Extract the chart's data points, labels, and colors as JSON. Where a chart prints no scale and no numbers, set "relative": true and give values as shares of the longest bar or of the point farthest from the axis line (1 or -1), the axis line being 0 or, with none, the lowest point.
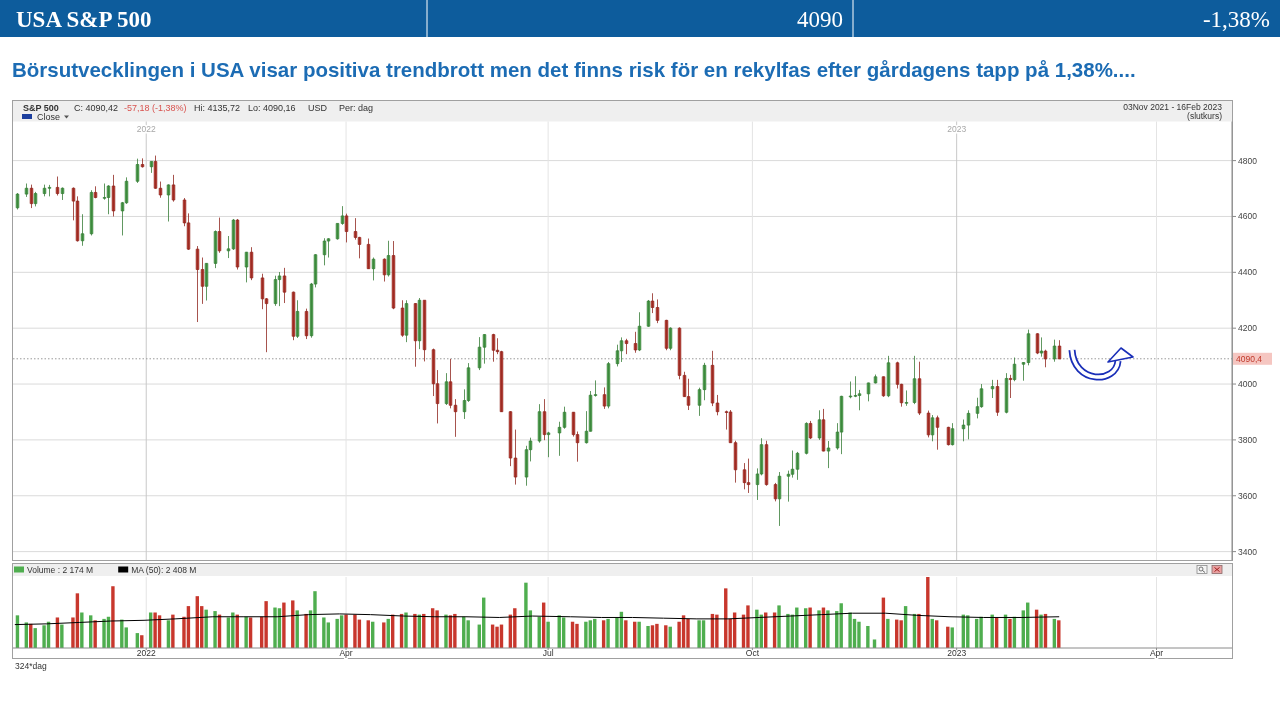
{
  "chart_data": [
    {
      "type": "candlestick",
      "title": "USA S&P 500",
      "subtitle": "Börsutvecklingen i USA visar positiva trendbrott men det finns risk för en rekylfas efter gårdagens tapp på 1,38%....",
      "annotations": [
        "4090",
        "-1,38%",
        "S&P 500",
        "C: 4090,42",
        "-57,18 (-1,38%)",
        "Hi: 4135,72",
        "Lo: 4090,16",
        "USD",
        "Per: dag",
        "Close",
        "03Nov 2021 - 16Feb 2023",
        "(slutkurs)"
      ],
      "x": [
        "2021-11-04",
        "2021-11-08",
        "2021-11-10",
        "2021-11-12",
        "2021-11-16",
        "2021-11-18",
        "2021-11-22",
        "2021-11-24",
        "2021-11-29",
        "2021-12-01",
        "2021-12-03",
        "2021-12-07",
        "2021-12-09",
        "2021-12-13",
        "2021-12-15",
        "2021-12-17",
        "2021-12-21",
        "2021-12-23",
        "2021-12-28",
        "2021-12-30",
        "2022-01-03",
        "2022-01-05",
        "2022-01-07",
        "2022-01-11",
        "2022-01-13",
        "2022-01-18",
        "2022-01-20",
        "2022-01-24",
        "2022-01-26",
        "2022-01-28",
        "2022-02-01",
        "2022-02-03",
        "2022-02-07",
        "2022-02-09",
        "2022-02-11",
        "2022-02-15",
        "2022-02-17",
        "2022-02-22",
        "2022-02-24",
        "2022-02-28",
        "2022-03-02",
        "2022-03-04",
        "2022-03-08",
        "2022-03-10",
        "2022-03-14",
        "2022-03-16",
        "2022-03-18",
        "2022-03-22",
        "2022-03-24",
        "2022-03-28",
        "2022-03-30",
        "2022-04-01",
        "2022-04-05",
        "2022-04-07",
        "2022-04-11",
        "2022-04-13",
        "2022-04-18",
        "2022-04-20",
        "2022-04-22",
        "2022-04-26",
        "2022-04-28",
        "2022-05-02",
        "2022-05-04",
        "2022-05-06",
        "2022-05-10",
        "2022-05-12",
        "2022-05-16",
        "2022-05-18",
        "2022-05-20",
        "2022-05-24",
        "2022-05-26",
        "2022-05-31",
        "2022-06-02",
        "2022-06-06",
        "2022-06-08",
        "2022-06-10",
        "2022-06-14",
        "2022-06-16",
        "2022-06-21",
        "2022-06-23",
        "2022-06-27",
        "2022-06-29",
        "2022-07-01",
        "2022-07-06",
        "2022-07-08",
        "2022-07-12",
        "2022-07-14",
        "2022-07-18",
        "2022-07-20",
        "2022-07-22",
        "2022-07-26",
        "2022-07-28",
        "2022-08-01",
        "2022-08-03",
        "2022-08-05",
        "2022-08-09",
        "2022-08-11",
        "2022-08-15",
        "2022-08-17",
        "2022-08-19",
        "2022-08-23",
        "2022-08-25",
        "2022-08-29",
        "2022-08-31",
        "2022-09-02",
        "2022-09-07",
        "2022-09-09",
        "2022-09-13",
        "2022-09-15",
        "2022-09-19",
        "2022-09-21",
        "2022-09-23",
        "2022-09-27",
        "2022-09-29",
        "2022-10-03",
        "2022-10-05",
        "2022-10-07",
        "2022-10-11",
        "2022-10-13",
        "2022-10-17",
        "2022-10-19",
        "2022-10-21",
        "2022-10-25",
        "2022-10-27",
        "2022-10-31",
        "2022-11-02",
        "2022-11-04",
        "2022-11-08",
        "2022-11-10",
        "2022-11-14",
        "2022-11-16",
        "2022-11-18",
        "2022-11-22",
        "2022-11-25",
        "2022-11-29",
        "2022-12-01",
        "2022-12-05",
        "2022-12-07",
        "2022-12-09",
        "2022-12-13",
        "2022-12-15",
        "2022-12-19",
        "2022-12-21",
        "2022-12-23",
        "2022-12-28",
        "2022-12-30",
        "2023-01-04",
        "2023-01-06",
        "2023-01-10",
        "2023-01-12",
        "2023-01-17",
        "2023-01-19",
        "2023-01-23",
        "2023-01-25",
        "2023-01-27",
        "2023-01-31",
        "2023-02-02",
        "2023-02-06",
        "2023-02-08",
        "2023-02-10",
        "2023-02-14",
        "2023-02-16"
      ],
      "ohlc": [
        [
          4631,
          4684,
          4625,
          4680
        ],
        [
          4680,
          4718,
          4670,
          4701
        ],
        [
          4701,
          4714,
          4630,
          4646
        ],
        [
          4646,
          4688,
          4636,
          4682
        ],
        [
          4682,
          4714,
          4672,
          4701
        ],
        [
          4701,
          4713,
          4672,
          4704
        ],
        [
          4704,
          4743,
          4675,
          4682
        ],
        [
          4682,
          4704,
          4659,
          4701
        ],
        [
          4701,
          4704,
          4586,
          4655
        ],
        [
          4655,
          4672,
          4510,
          4513
        ],
        [
          4513,
          4608,
          4495,
          4538
        ],
        [
          4538,
          4694,
          4532,
          4686
        ],
        [
          4686,
          4708,
          4665,
          4668
        ],
        [
          4668,
          4718,
          4660,
          4668
        ],
        [
          4668,
          4712,
          4608,
          4709
        ],
        [
          4709,
          4749,
          4600,
          4620
        ],
        [
          4620,
          4652,
          4532,
          4649
        ],
        [
          4649,
          4740,
          4645,
          4726
        ],
        [
          4726,
          4807,
          4720,
          4786
        ],
        [
          4786,
          4808,
          4775,
          4778
        ],
        [
          4778,
          4797,
          4756,
          4797
        ],
        [
          4797,
          4818,
          4699,
          4701
        ],
        [
          4701,
          4725,
          4667,
          4677
        ],
        [
          4677,
          4715,
          4582,
          4713
        ],
        [
          4713,
          4749,
          4653,
          4659
        ],
        [
          4659,
          4666,
          4565,
          4577
        ],
        [
          4577,
          4611,
          4480,
          4483
        ],
        [
          4483,
          4494,
          4222,
          4410
        ],
        [
          4410,
          4453,
          4287,
          4350
        ],
        [
          4350,
          4433,
          4299,
          4432
        ],
        [
          4432,
          4550,
          4415,
          4546
        ],
        [
          4546,
          4596,
          4470,
          4477
        ],
        [
          4477,
          4530,
          4451,
          4484
        ],
        [
          4484,
          4591,
          4480,
          4587
        ],
        [
          4587,
          4591,
          4410,
          4419
        ],
        [
          4419,
          4473,
          4364,
          4472
        ],
        [
          4472,
          4490,
          4372,
          4380
        ],
        [
          4380,
          4395,
          4268,
          4305
        ],
        [
          4305,
          4308,
          4114,
          4288
        ],
        [
          4288,
          4388,
          4280,
          4374
        ],
        [
          4374,
          4401,
          4279,
          4387
        ],
        [
          4387,
          4416,
          4290,
          4329
        ],
        [
          4329,
          4331,
          4157,
          4171
        ],
        [
          4171,
          4300,
          4165,
          4260
        ],
        [
          4260,
          4270,
          4161,
          4173
        ],
        [
          4173,
          4362,
          4166,
          4358
        ],
        [
          4358,
          4465,
          4346,
          4463
        ],
        [
          4463,
          4522,
          4425,
          4512
        ],
        [
          4512,
          4522,
          4453,
          4520
        ],
        [
          4520,
          4575,
          4517,
          4575
        ],
        [
          4575,
          4637,
          4570,
          4602
        ],
        [
          4602,
          4610,
          4507,
          4546
        ],
        [
          4546,
          4594,
          4517,
          4525
        ],
        [
          4525,
          4527,
          4450,
          4500
        ],
        [
          4500,
          4521,
          4412,
          4413
        ],
        [
          4413,
          4453,
          4371,
          4447
        ],
        [
          4447,
          4450,
          4367,
          4391
        ],
        [
          4391,
          4513,
          4385,
          4460
        ],
        [
          4460,
          4512,
          4268,
          4272
        ],
        [
          4272,
          4300,
          4169,
          4175
        ],
        [
          4175,
          4300,
          4150,
          4288
        ],
        [
          4288,
          4290,
          4062,
          4155
        ],
        [
          4155,
          4308,
          4125,
          4300
        ],
        [
          4300,
          4300,
          4081,
          4123
        ],
        [
          4123,
          4127,
          3957,
          4001
        ],
        [
          4001,
          4050,
          3859,
          3930
        ],
        [
          3930,
          4039,
          3925,
          4008
        ],
        [
          4008,
          4090,
          3913,
          3924
        ],
        [
          3924,
          3946,
          3811,
          3901
        ],
        [
          3901,
          3981,
          3875,
          3941
        ],
        [
          3941,
          4075,
          3936,
          4058
        ],
        [
          4058,
          4168,
          4050,
          4132
        ],
        [
          4132,
          4178,
          4073,
          4177
        ],
        [
          4177,
          4180,
          4080,
          4121
        ],
        [
          4121,
          4164,
          4107,
          4116
        ],
        [
          4116,
          4119,
          3900,
          3901
        ],
        [
          3901,
          3903,
          3706,
          3735
        ],
        [
          3735,
          3837,
          3640,
          3667
        ],
        [
          3667,
          3779,
          3636,
          3765
        ],
        [
          3765,
          3808,
          3723,
          3796
        ],
        [
          3796,
          3928,
          3790,
          3901
        ],
        [
          3901,
          3946,
          3799,
          3819
        ],
        [
          3819,
          3829,
          3738,
          3825
        ],
        [
          3825,
          3865,
          3743,
          3845
        ],
        [
          3845,
          3919,
          3840,
          3899
        ],
        [
          3899,
          3900,
          3812,
          3819
        ],
        [
          3819,
          3830,
          3722,
          3790
        ],
        [
          3790,
          3903,
          3787,
          3831
        ],
        [
          3831,
          3975,
          3830,
          3960
        ],
        [
          3960,
          4013,
          3955,
          3962
        ],
        [
          3962,
          3988,
          3911,
          3921
        ],
        [
          3921,
          4079,
          3913,
          4073
        ],
        [
          4073,
          4141,
          4063,
          4119
        ],
        [
          4119,
          4167,
          4079,
          4155
        ],
        [
          4155,
          4162,
          4107,
          4145
        ],
        [
          4145,
          4187,
          4112,
          4122
        ],
        [
          4122,
          4257,
          4118,
          4207
        ],
        [
          4207,
          4301,
          4205,
          4297
        ],
        [
          4297,
          4325,
          4254,
          4274
        ],
        [
          4274,
          4303,
          4218,
          4228
        ],
        [
          4228,
          4230,
          4121,
          4128
        ],
        [
          4128,
          4203,
          4121,
          4200
        ],
        [
          4200,
          4203,
          4017,
          4031
        ],
        [
          4031,
          4044,
          3954,
          3955
        ],
        [
          3955,
          4019,
          3907,
          3924
        ],
        [
          3924,
          3987,
          3886,
          3980
        ],
        [
          3980,
          4076,
          3942,
          4067
        ],
        [
          4067,
          4119,
          3921,
          3932
        ],
        [
          3932,
          3961,
          3888,
          3901
        ],
        [
          3901,
          3905,
          3837,
          3900
        ],
        [
          3900,
          3907,
          3789,
          3790
        ],
        [
          3790,
          3797,
          3647,
          3693
        ],
        [
          3693,
          3717,
          3623,
          3647
        ],
        [
          3647,
          3733,
          3610,
          3640
        ],
        [
          3640,
          3698,
          3585,
          3678
        ],
        [
          3678,
          3806,
          3673,
          3783
        ],
        [
          3783,
          3797,
          3636,
          3640
        ],
        [
          3640,
          3646,
          3580,
          3589
        ],
        [
          3589,
          3685,
          3492,
          3670
        ],
        [
          3670,
          3690,
          3579,
          3677
        ],
        [
          3677,
          3762,
          3665,
          3695
        ],
        [
          3695,
          3757,
          3657,
          3752
        ],
        [
          3752,
          3863,
          3748,
          3859
        ],
        [
          3859,
          3868,
          3803,
          3807
        ],
        [
          3807,
          3906,
          3800,
          3872
        ],
        [
          3872,
          3911,
          3759,
          3760
        ],
        [
          3760,
          3796,
          3699,
          3771
        ],
        [
          3771,
          3860,
          3765,
          3828
        ],
        [
          3828,
          3958,
          3749,
          3956
        ],
        [
          3956,
          4009,
          3949,
          3957
        ],
        [
          3957,
          4028,
          3953,
          3959
        ],
        [
          3959,
          3979,
          3906,
          3965
        ],
        [
          3965,
          4005,
          3938,
          4004
        ],
        [
          4004,
          4034,
          4002,
          4026
        ],
        [
          4026,
          4027,
          3954,
          3958
        ],
        [
          3958,
          4101,
          3953,
          4076
        ],
        [
          4076,
          4080,
          3984,
          3999
        ],
        [
          3999,
          4001,
          3919,
          3933
        ],
        [
          3933,
          3977,
          3922,
          3934
        ],
        [
          3934,
          4101,
          3928,
          4019
        ],
        [
          4019,
          4080,
          3889,
          3896
        ],
        [
          3896,
          3905,
          3809,
          3818
        ],
        [
          3818,
          3889,
          3795,
          3879
        ],
        [
          3879,
          3887,
          3765,
          3845
        ],
        [
          3845,
          3847,
          3780,
          3783
        ],
        [
          3783,
          3860,
          3780,
          3840
        ],
        [
          3840,
          3873,
          3795,
          3853
        ],
        [
          3853,
          3906,
          3802,
          3895
        ],
        [
          3895,
          3951,
          3877,
          3919
        ],
        [
          3919,
          4000,
          3915,
          3983
        ],
        [
          3983,
          4015,
          3950,
          3991
        ],
        [
          3991,
          4015,
          3886,
          3899
        ],
        [
          3899,
          4039,
          3895,
          4020
        ],
        [
          4020,
          4033,
          3950,
          4016
        ],
        [
          4016,
          4095,
          4010,
          4071
        ],
        [
          4071,
          4078,
          4012,
          4077
        ],
        [
          4077,
          4195,
          4067,
          4180
        ],
        [
          4180,
          4182,
          4107,
          4111
        ],
        [
          4111,
          4167,
          4098,
          4118
        ],
        [
          4118,
          4123,
          4060,
          4090
        ],
        [
          4090,
          4159,
          4080,
          4136
        ],
        [
          4136,
          4157,
          4090,
          4090
        ]
      ],
      "colors": [
        "#4fae4f",
        "#4fae4f",
        "#c8372d",
        "#4fae4f",
        "#4fae4f",
        "#4fae4f",
        "#c8372d",
        "#4fae4f",
        "#c8372d",
        "#c8372d",
        "#4fae4f",
        "#4fae4f",
        "#c8372d",
        "#4fae4f",
        "#4fae4f",
        "#c8372d",
        "#4fae4f",
        "#4fae4f",
        "#4fae4f",
        "#c8372d",
        "#4fae4f",
        "#c8372d",
        "#c8372d",
        "#4fae4f",
        "#c8372d",
        "#c8372d",
        "#c8372d",
        "#c8372d",
        "#c8372d",
        "#4fae4f",
        "#4fae4f",
        "#c8372d",
        "#4fae4f",
        "#4fae4f",
        "#c8372d",
        "#4fae4f",
        "#c8372d",
        "#c8372d",
        "#c8372d",
        "#4fae4f",
        "#4fae4f",
        "#c8372d",
        "#c8372d",
        "#4fae4f",
        "#c8372d",
        "#4fae4f",
        "#4fae4f",
        "#4fae4f",
        "#4fae4f",
        "#4fae4f",
        "#4fae4f",
        "#c8372d",
        "#c8372d",
        "#c8372d",
        "#c8372d",
        "#4fae4f",
        "#c8372d",
        "#4fae4f",
        "#c8372d",
        "#c8372d",
        "#4fae4f",
        "#c8372d",
        "#4fae4f",
        "#c8372d",
        "#c8372d",
        "#c8372d",
        "#4fae4f",
        "#c8372d",
        "#c8372d",
        "#4fae4f",
        "#4fae4f",
        "#4fae4f",
        "#4fae4f",
        "#c8372d",
        "#c8372d",
        "#c8372d",
        "#c8372d",
        "#c8372d",
        "#4fae4f",
        "#4fae4f",
        "#4fae4f",
        "#c8372d",
        "#4fae4f",
        "#4fae4f",
        "#4fae4f",
        "#c8372d",
        "#c8372d",
        "#4fae4f",
        "#4fae4f",
        "#4fae4f",
        "#c8372d",
        "#4fae4f",
        "#4fae4f",
        "#4fae4f",
        "#c8372d",
        "#c8372d",
        "#4fae4f",
        "#4fae4f",
        "#c8372d",
        "#c8372d",
        "#c8372d",
        "#4fae4f",
        "#c8372d",
        "#c8372d",
        "#c8372d",
        "#4fae4f",
        "#4fae4f",
        "#c8372d",
        "#c8372d",
        "#c8372d",
        "#c8372d",
        "#c8372d",
        "#c8372d",
        "#c8372d",
        "#4fae4f",
        "#4fae4f",
        "#c8372d",
        "#c8372d",
        "#4fae4f",
        "#4fae4f",
        "#4fae4f",
        "#4fae4f",
        "#4fae4f",
        "#c8372d",
        "#4fae4f",
        "#c8372d",
        "#4fae4f",
        "#4fae4f",
        "#4fae4f",
        "#4fae4f",
        "#4fae4f",
        "#4fae4f",
        "#4fae4f",
        "#4fae4f",
        "#c8372d",
        "#4fae4f",
        "#c8372d",
        "#c8372d",
        "#4fae4f",
        "#4fae4f",
        "#c8372d",
        "#c8372d",
        "#4fae4f",
        "#c8372d",
        "#c8372d",
        "#4fae4f",
        "#4fae4f",
        "#4fae4f",
        "#4fae4f",
        "#4fae4f",
        "#4fae4f",
        "#c8372d",
        "#4fae4f",
        "#c8372d",
        "#4fae4f",
        "#4fae4f",
        "#4fae4f",
        "#c8372d",
        "#4fae4f",
        "#c8372d",
        "#4fae4f",
        "#c8372d"
      ],
      "xlim": [
        "2021-11-02",
        "2023-05-05"
      ],
      "xticks": [
        {
          "value": "2022-01-01",
          "label": "2022"
        },
        {
          "value": "2022-04-01",
          "label": null
        },
        {
          "value": "2022-07-01",
          "label": null
        },
        {
          "value": "2022-10-01",
          "label": null
        },
        {
          "value": "2023-01-01",
          "label": "2023"
        },
        {
          "value": "2023-04-01",
          "label": null
        }
      ],
      "ylim": [
        3370,
        4940
      ],
      "yticks": [
        3400,
        3600,
        3800,
        4000,
        4200,
        4400,
        4600,
        4800
      ],
      "grid": true,
      "ref_lines": [
        {
          "axis": "y",
          "value": 4090.4,
          "label": "4090,4",
          "color": "#9a9a9a",
          "line_style": "dotted"
        }
      ]
    },
    {
      "type": "bar",
      "relative": true,
      "x": [
        "2021-11-04",
        "2021-11-08",
        "2021-11-10",
        "2021-11-12",
        "2021-11-16",
        "2021-11-18",
        "2021-11-22",
        "2021-11-24",
        "2021-11-29",
        "2021-12-01",
        "2021-12-03",
        "2021-12-07",
        "2021-12-09",
        "2021-12-13",
        "2021-12-15",
        "2021-12-17",
        "2021-12-21",
        "2021-12-23",
        "2021-12-28",
        "2021-12-30",
        "2022-01-03",
        "2022-01-05",
        "2022-01-07",
        "2022-01-11",
        "2022-01-13",
        "2022-01-18",
        "2022-01-20",
        "2022-01-24",
        "2022-01-26",
        "2022-01-28",
        "2022-02-01",
        "2022-02-03",
        "2022-02-07",
        "2022-02-09",
        "2022-02-11",
        "2022-02-15",
        "2022-02-17",
        "2022-02-22",
        "2022-02-24",
        "2022-02-28",
        "2022-03-02",
        "2022-03-04",
        "2022-03-08",
        "2022-03-10",
        "2022-03-14",
        "2022-03-16",
        "2022-03-18",
        "2022-03-22",
        "2022-03-24",
        "2022-03-28",
        "2022-03-30",
        "2022-04-01",
        "2022-04-05",
        "2022-04-07",
        "2022-04-11",
        "2022-04-13",
        "2022-04-18",
        "2022-04-20",
        "2022-04-22",
        "2022-04-26",
        "2022-04-28",
        "2022-05-02",
        "2022-05-04",
        "2022-05-06",
        "2022-05-10",
        "2022-05-12",
        "2022-05-16",
        "2022-05-18",
        "2022-05-20",
        "2022-05-24",
        "2022-05-26",
        "2022-05-31",
        "2022-06-02",
        "2022-06-06",
        "2022-06-08",
        "2022-06-10",
        "2022-06-14",
        "2022-06-16",
        "2022-06-21",
        "2022-06-23",
        "2022-06-27",
        "2022-06-29",
        "2022-07-01",
        "2022-07-06",
        "2022-07-08",
        "2022-07-12",
        "2022-07-14",
        "2022-07-18",
        "2022-07-20",
        "2022-07-22",
        "2022-07-26",
        "2022-07-28",
        "2022-08-01",
        "2022-08-03",
        "2022-08-05",
        "2022-08-09",
        "2022-08-11",
        "2022-08-15",
        "2022-08-17",
        "2022-08-19",
        "2022-08-23",
        "2022-08-25",
        "2022-08-29",
        "2022-08-31",
        "2022-09-02",
        "2022-09-07",
        "2022-09-09",
        "2022-09-13",
        "2022-09-15",
        "2022-09-19",
        "2022-09-21",
        "2022-09-23",
        "2022-09-27",
        "2022-09-29",
        "2022-10-03",
        "2022-10-05",
        "2022-10-07",
        "2022-10-11",
        "2022-10-13",
        "2022-10-17",
        "2022-10-19",
        "2022-10-21",
        "2022-10-25",
        "2022-10-27",
        "2022-10-31",
        "2022-11-02",
        "2022-11-04",
        "2022-11-08",
        "2022-11-10",
        "2022-11-14",
        "2022-11-16",
        "2022-11-18",
        "2022-11-22",
        "2022-11-25",
        "2022-11-29",
        "2022-12-01",
        "2022-12-05",
        "2022-12-07",
        "2022-12-09",
        "2022-12-13",
        "2022-12-15",
        "2022-12-19",
        "2022-12-21",
        "2022-12-23",
        "2022-12-28",
        "2022-12-30",
        "2023-01-04",
        "2023-01-06",
        "2023-01-10",
        "2023-01-12",
        "2023-01-17",
        "2023-01-19",
        "2023-01-23",
        "2023-01-25",
        "2023-01-27",
        "2023-01-31",
        "2023-02-02",
        "2023-02-06",
        "2023-02-08",
        "2023-02-10",
        "2023-02-14",
        "2023-02-16"
      ],
      "series": [
        {
          "name": "Volume : 2 174 M",
          "type": "bar",
          "color": "#4fae4f",
          "values": [
            0.46,
            0.36,
            0.34,
            0.28,
            0.32,
            0.37,
            0.43,
            0.33,
            0.43,
            0.77,
            0.5,
            0.46,
            0.39,
            0.41,
            0.44,
            0.87,
            0.4,
            0.29,
            0.21,
            0.18,
            0.5,
            0.5,
            0.46,
            0.39,
            0.47,
            0.44,
            0.59,
            0.73,
            0.59,
            0.54,
            0.52,
            0.47,
            0.43,
            0.5,
            0.47,
            0.44,
            0.43,
            0.44,
            0.66,
            0.57,
            0.56,
            0.64,
            0.67,
            0.53,
            0.48,
            0.53,
            0.8,
            0.43,
            0.36,
            0.41,
            0.46,
            0.47,
            0.47,
            0.4,
            0.39,
            0.37,
            0.36,
            0.41,
            0.47,
            0.48,
            0.5,
            0.48,
            0.47,
            0.48,
            0.56,
            0.53,
            0.47,
            0.46,
            0.48,
            0.44,
            0.39,
            0.33,
            0.71,
            0.33,
            0.3,
            0.33,
            0.47,
            0.56,
            0.92,
            0.53,
            0.44,
            0.64,
            0.37,
            0.46,
            0.43,
            0.37,
            0.34,
            0.37,
            0.39,
            0.41,
            0.39,
            0.41,
            0.43,
            0.51,
            0.39,
            0.37,
            0.37,
            0.31,
            0.32,
            0.34,
            0.32,
            0.3,
            0.37,
            0.46,
            0.41,
            0.39,
            0.39,
            0.48,
            0.47,
            0.84,
            0.41,
            0.5,
            0.47,
            0.6,
            0.54,
            0.47,
            0.5,
            0.5,
            0.6,
            0.48,
            0.47,
            0.57,
            0.56,
            0.57,
            0.53,
            0.57,
            0.53,
            0.52,
            0.63,
            0.5,
            0.41,
            0.37,
            0.31,
            0.12,
            0.71,
            0.41,
            0.4,
            0.39,
            0.59,
            0.48,
            0.48,
            1,
            0.41,
            0.39,
            0.3,
            0.29,
            0.47,
            0.46,
            0.41,
            0.44,
            0.47,
            0.43,
            0.47,
            0.41,
            0.44,
            0.53,
            0.64,
            0.54,
            0.47,
            0.48,
            0.41,
            0.39
          ],
          "colors": [
            "#4fae4f",
            "#4fae4f",
            "#c8372d",
            "#4fae4f",
            "#4fae4f",
            "#4fae4f",
            "#c8372d",
            "#4fae4f",
            "#c8372d",
            "#c8372d",
            "#4fae4f",
            "#4fae4f",
            "#c8372d",
            "#4fae4f",
            "#4fae4f",
            "#c8372d",
            "#4fae4f",
            "#4fae4f",
            "#4fae4f",
            "#c8372d",
            "#4fae4f",
            "#c8372d",
            "#c8372d",
            "#4fae4f",
            "#c8372d",
            "#c8372d",
            "#c8372d",
            "#c8372d",
            "#c8372d",
            "#4fae4f",
            "#4fae4f",
            "#c8372d",
            "#4fae4f",
            "#4fae4f",
            "#c8372d",
            "#4fae4f",
            "#c8372d",
            "#c8372d",
            "#c8372d",
            "#4fae4f",
            "#4fae4f",
            "#c8372d",
            "#c8372d",
            "#4fae4f",
            "#c8372d",
            "#4fae4f",
            "#4fae4f",
            "#4fae4f",
            "#4fae4f",
            "#4fae4f",
            "#4fae4f",
            "#c8372d",
            "#c8372d",
            "#c8372d",
            "#c8372d",
            "#4fae4f",
            "#c8372d",
            "#4fae4f",
            "#c8372d",
            "#c8372d",
            "#4fae4f",
            "#c8372d",
            "#4fae4f",
            "#c8372d",
            "#c8372d",
            "#c8372d",
            "#4fae4f",
            "#c8372d",
            "#c8372d",
            "#4fae4f",
            "#4fae4f",
            "#4fae4f",
            "#4fae4f",
            "#c8372d",
            "#c8372d",
            "#c8372d",
            "#c8372d",
            "#c8372d",
            "#4fae4f",
            "#4fae4f",
            "#4fae4f",
            "#c8372d",
            "#4fae4f",
            "#4fae4f",
            "#4fae4f",
            "#c8372d",
            "#c8372d",
            "#4fae4f",
            "#4fae4f",
            "#4fae4f",
            "#c8372d",
            "#4fae4f",
            "#4fae4f",
            "#4fae4f",
            "#c8372d",
            "#c8372d",
            "#4fae4f",
            "#4fae4f",
            "#c8372d",
            "#c8372d",
            "#c8372d",
            "#4fae4f",
            "#c8372d",
            "#c8372d",
            "#c8372d",
            "#4fae4f",
            "#4fae4f",
            "#c8372d",
            "#c8372d",
            "#c8372d",
            "#c8372d",
            "#c8372d",
            "#c8372d",
            "#c8372d",
            "#4fae4f",
            "#4fae4f",
            "#c8372d",
            "#c8372d",
            "#4fae4f",
            "#4fae4f",
            "#4fae4f",
            "#4fae4f",
            "#4fae4f",
            "#c8372d",
            "#4fae4f",
            "#c8372d",
            "#4fae4f",
            "#4fae4f",
            "#4fae4f",
            "#4fae4f",
            "#4fae4f",
            "#4fae4f",
            "#4fae4f",
            "#4fae4f",
            "#c8372d",
            "#4fae4f",
            "#c8372d",
            "#c8372d",
            "#4fae4f",
            "#4fae4f",
            "#c8372d",
            "#c8372d",
            "#4fae4f",
            "#c8372d",
            "#c8372d",
            "#4fae4f",
            "#4fae4f",
            "#4fae4f",
            "#4fae4f",
            "#4fae4f",
            "#4fae4f",
            "#c8372d",
            "#4fae4f",
            "#c8372d",
            "#4fae4f",
            "#4fae4f",
            "#4fae4f",
            "#c8372d",
            "#4fae4f",
            "#c8372d",
            "#4fae4f",
            "#c8372d"
          ]
        },
        {
          "name": "MA (50): 2 408 M",
          "type": "line",
          "color": "#000000",
          "x": [
            "2021-11-03",
            "2021-11-17",
            "2021-12-02",
            "2021-12-16",
            "2021-12-31",
            "2022-01-14",
            "2022-01-31",
            "2022-02-14",
            "2022-03-01",
            "2022-03-15",
            "2022-03-29",
            "2022-04-12",
            "2022-04-27",
            "2022-05-11",
            "2022-05-25",
            "2022-06-09",
            "2022-06-24",
            "2022-07-11",
            "2022-07-25",
            "2022-08-08",
            "2022-08-22",
            "2022-09-06",
            "2022-09-20",
            "2022-10-04",
            "2022-10-18",
            "2022-11-01",
            "2022-11-15",
            "2022-11-30",
            "2022-12-14",
            "2022-12-29",
            "2023-01-13",
            "2023-01-30",
            "2023-02-16"
          ],
          "values": [
            0.33,
            0.34,
            0.36,
            0.38,
            0.39,
            0.41,
            0.44,
            0.44,
            0.44,
            0.47,
            0.48,
            0.47,
            0.45,
            0.44,
            0.44,
            0.43,
            0.45,
            0.44,
            0.43,
            0.43,
            0.42,
            0.41,
            0.41,
            0.43,
            0.45,
            0.47,
            0.49,
            0.49,
            0.46,
            0.44,
            0.43,
            0.43,
            0.44
          ]
        }
      ],
      "xlim": [
        "2021-11-02",
        "2023-05-05"
      ],
      "xticks": [
        {
          "value": "2022-01-01",
          "label": "2022"
        },
        {
          "value": "2022-04-01",
          "label": "Apr"
        },
        {
          "value": "2022-07-01",
          "label": "Jul"
        },
        {
          "value": "2022-10-01",
          "label": "Oct"
        },
        {
          "value": "2023-01-01",
          "label": "2023"
        },
        {
          "value": "2023-04-01",
          "label": "Apr"
        }
      ],
      "tick_labels": "x",
      "grid": "x",
      "legend": "top left",
      "annotations": [
        "324*dag"
      ]
    }
  ]
}
